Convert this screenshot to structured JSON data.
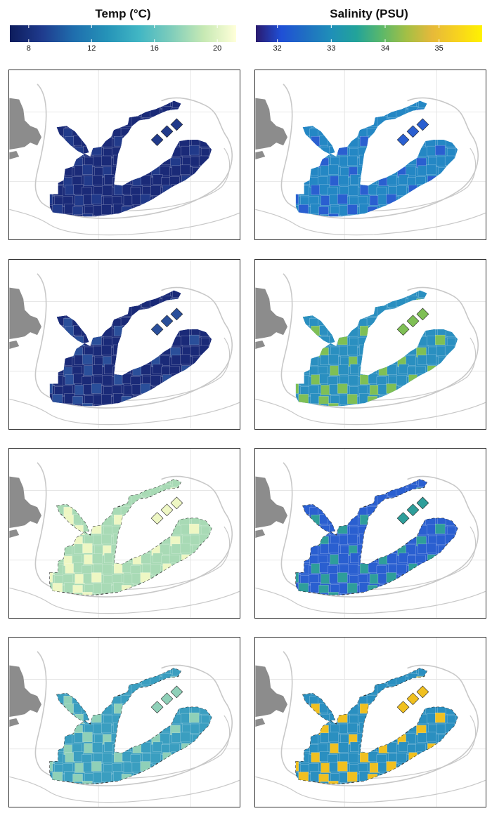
{
  "legends": [
    {
      "title": "Temp (°C)",
      "ticks": [
        {
          "label": "8",
          "value": 8
        },
        {
          "label": "12",
          "value": 12
        },
        {
          "label": "16",
          "value": 16
        },
        {
          "label": "20",
          "value": 20
        }
      ],
      "range": [
        6.8,
        21.2
      ],
      "colormap": [
        "#0d1c5c",
        "#1f3b8e",
        "#1f6fae",
        "#2593b8",
        "#41b6c4",
        "#7fcdbb",
        "#c7e9b4",
        "#ffffd9"
      ]
    },
    {
      "title": "Salinity (PSU)",
      "ticks": [
        {
          "label": "32",
          "value": 32
        },
        {
          "label": "33",
          "value": 33
        },
        {
          "label": "34",
          "value": 34
        },
        {
          "label": "35",
          "value": 35
        }
      ],
      "range": [
        31.6,
        35.8
      ],
      "colormap": [
        "#2a1a6e",
        "#1f4fd6",
        "#1f6fc2",
        "#1f8fb8",
        "#22a39a",
        "#5bb86a",
        "#a4bf45",
        "#e6b93a",
        "#f7d21f",
        "#fff200"
      ]
    }
  ],
  "panels": [
    {
      "variable": "temperature",
      "fill": "#1a2a78",
      "accent": "#213a8a",
      "dashed": false
    },
    {
      "variable": "salinity",
      "fill": "#2487c4",
      "accent": "#2a5fd0",
      "dashed": false
    },
    {
      "variable": "temperature",
      "fill": "#1a2a78",
      "accent": "#2a4f9a",
      "dashed": false
    },
    {
      "variable": "salinity",
      "fill": "#2a8fc0",
      "accent": "#7fbf55",
      "dashed": false
    },
    {
      "variable": "temperature",
      "fill": "#a8dab5",
      "accent": "#eef7c4",
      "dashed": true
    },
    {
      "variable": "salinity",
      "fill": "#2a5fd0",
      "accent": "#2e9e9a",
      "dashed": true
    },
    {
      "variable": "temperature",
      "fill": "#3a9ec0",
      "accent": "#8fd0b8",
      "dashed": true
    },
    {
      "variable": "salinity",
      "fill": "#2a8fc0",
      "accent": "#f0c020",
      "dashed": true
    }
  ],
  "map_colors": {
    "land": "#8c8c8c",
    "isobath": "#c8c8c8",
    "grid": "#e6e6e6",
    "cell_border": "#ffffff"
  }
}
